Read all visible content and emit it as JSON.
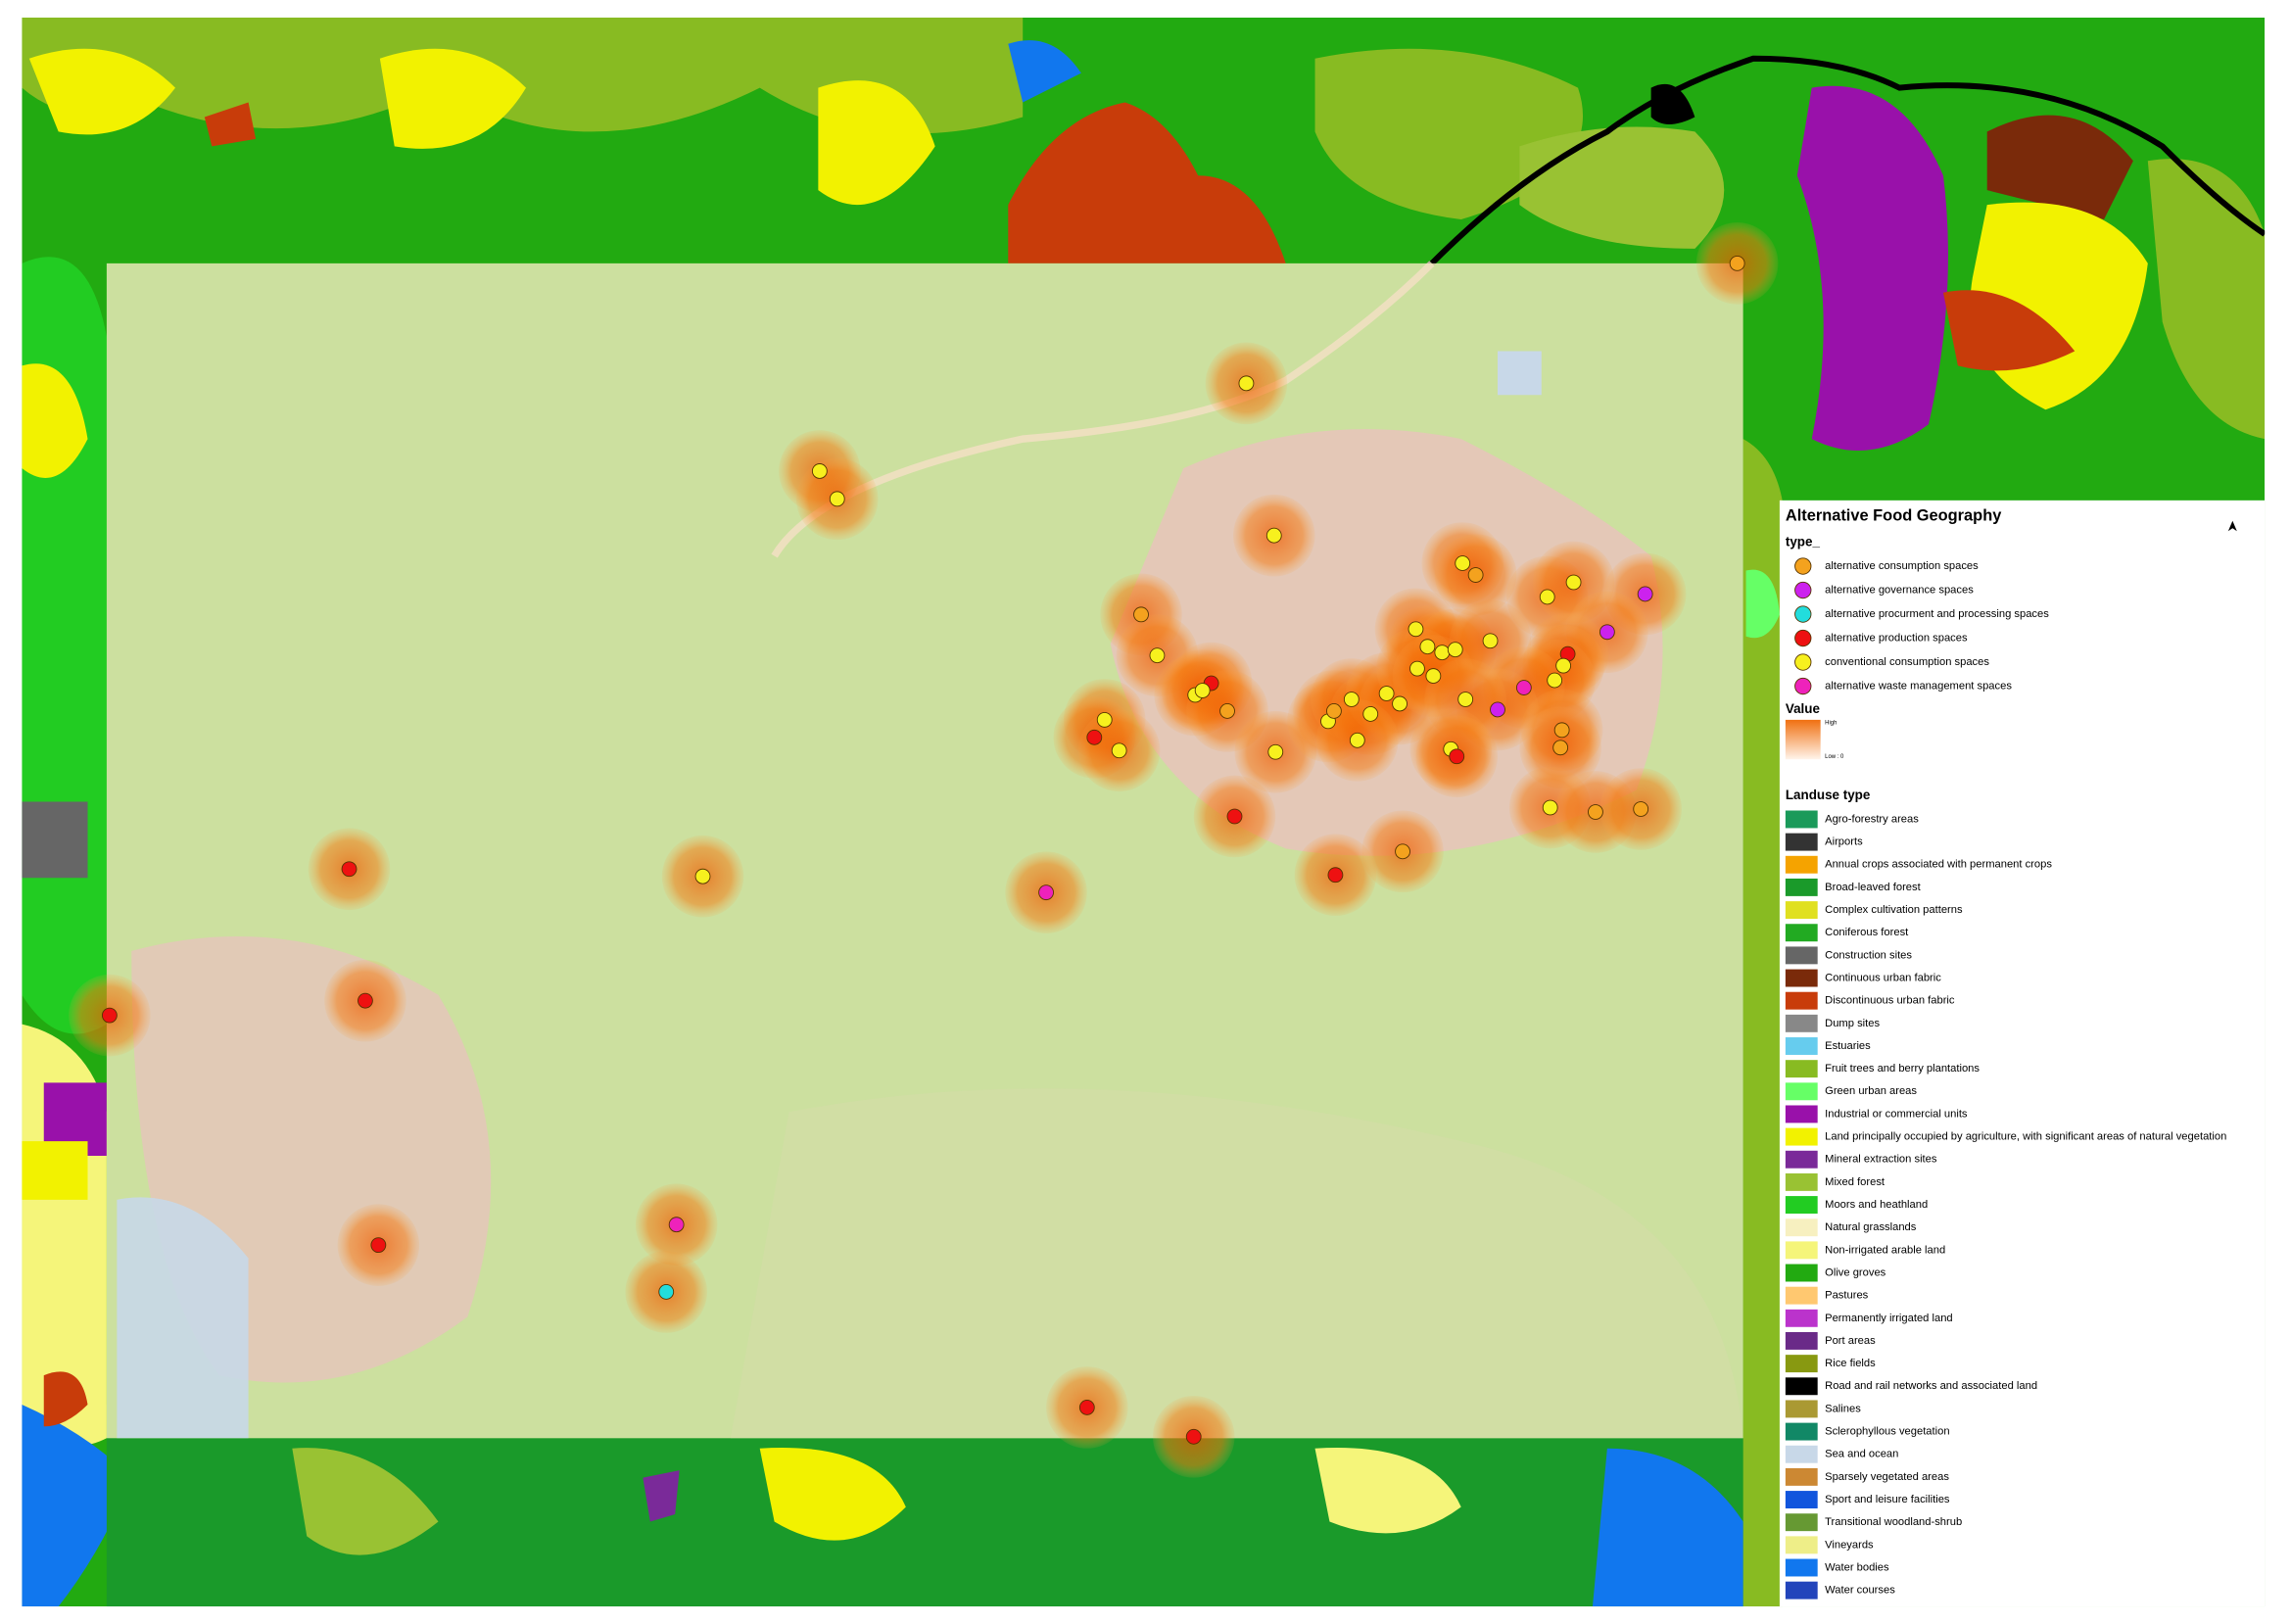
{
  "legend": {
    "title": "Alternative Food Geography",
    "type_section": {
      "heading": "type_",
      "items": [
        {
          "label": "alternative consumption spaces",
          "color": "#f4a21e"
        },
        {
          "label": "alternative governance spaces",
          "color": "#cc22ee"
        },
        {
          "label": "alternative procurment and processing spaces",
          "color": "#22dddd"
        },
        {
          "label": "alternative production spaces",
          "color": "#ee1111"
        },
        {
          "label": "conventional consumption spaces",
          "color": "#f7f01e"
        },
        {
          "label": "alternative waste management spaces",
          "color": "#ee22bb"
        }
      ]
    },
    "value_section": {
      "heading": "Value",
      "high_label": "High",
      "low_label": "Low : 0"
    },
    "landuse_section": {
      "heading": "Landuse type",
      "items": [
        {
          "label": "Agro-forestry areas",
          "color": "#1a9a5a"
        },
        {
          "label": "Airports",
          "color": "#333333"
        },
        {
          "label": "Annual crops associated with permanent crops",
          "color": "#f5a300"
        },
        {
          "label": "Broad-leaved forest",
          "color": "#1a9a2a"
        },
        {
          "label": "Complex cultivation patterns",
          "color": "#e0e020"
        },
        {
          "label": "Coniferous forest",
          "color": "#22aa22"
        },
        {
          "label": "Construction sites",
          "color": "#666666"
        },
        {
          "label": "Continuous urban fabric",
          "color": "#7a2a0a"
        },
        {
          "label": "Discontinuous urban fabric",
          "color": "#c83c0a"
        },
        {
          "label": "Dump sites",
          "color": "#888888"
        },
        {
          "label": "Estuaries",
          "color": "#66ccee"
        },
        {
          "label": "Fruit trees and berry plantations",
          "color": "#88bb22"
        },
        {
          "label": "Green urban areas",
          "color": "#66ff66"
        },
        {
          "label": "Industrial or commercial units",
          "color": "#9911aa"
        },
        {
          "label": "Land principally occupied by agriculture, with significant areas of natural vegetation",
          "color": "#f2f200"
        },
        {
          "label": "Mineral extraction sites",
          "color": "#7a2a99"
        },
        {
          "label": "Mixed forest",
          "color": "#99c233"
        },
        {
          "label": "Moors and heathland",
          "color": "#22cc22"
        },
        {
          "label": "Natural grasslands",
          "color": "#f7f0c0"
        },
        {
          "label": "Non-irrigated arable land",
          "color": "#f5f57a"
        },
        {
          "label": "Olive groves",
          "color": "#22aa11"
        },
        {
          "label": "Pastures",
          "color": "#ffc870"
        },
        {
          "label": "Permanently irrigated land",
          "color": "#bb33cc"
        },
        {
          "label": "Port areas",
          "color": "#6a2a88"
        },
        {
          "label": "Rice fields",
          "color": "#889911"
        },
        {
          "label": "Road and rail networks and associated land",
          "color": "#000000"
        },
        {
          "label": "Salines",
          "color": "#aa9933"
        },
        {
          "label": "Sclerophyllous vegetation",
          "color": "#118866"
        },
        {
          "label": "Sea and ocean",
          "color": "#c8d8e8"
        },
        {
          "label": "Sparsely vegetated areas",
          "color": "#cc8833"
        },
        {
          "label": "Sport and leisure facilities",
          "color": "#1155dd"
        },
        {
          "label": "Transitional woodland-shrub",
          "color": "#669933"
        },
        {
          "label": "Vineyards",
          "color": "#eeee88"
        },
        {
          "label": "Water bodies",
          "color": "#1177ee"
        },
        {
          "label": "Water courses",
          "color": "#2244bb"
        }
      ]
    }
  }
}
